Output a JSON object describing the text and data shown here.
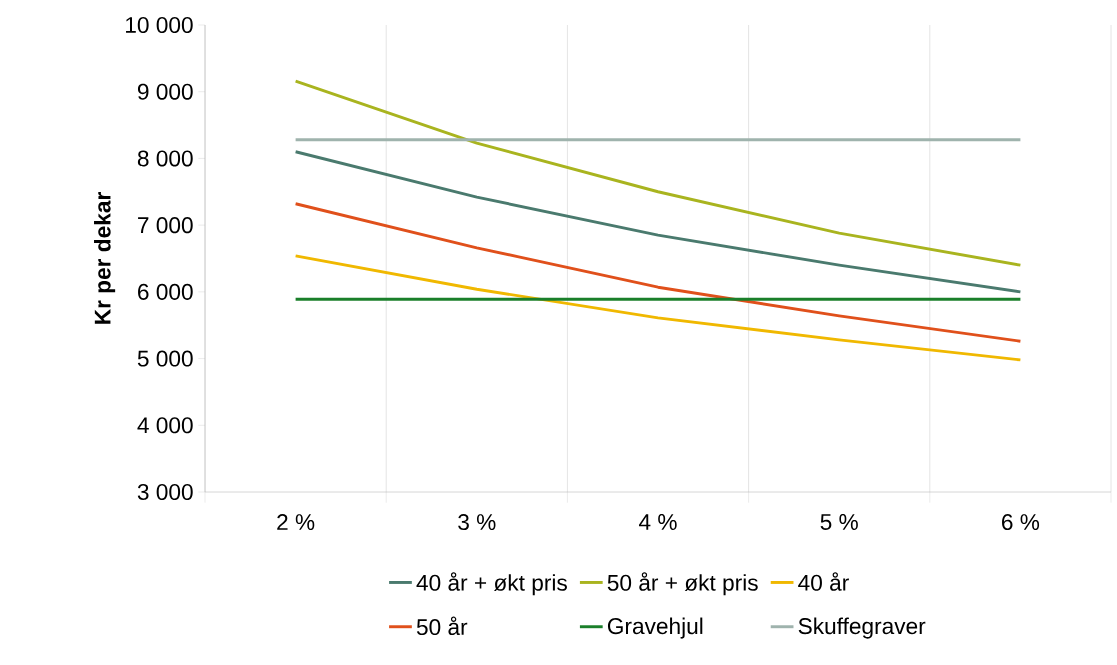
{
  "chart_data": {
    "type": "line",
    "ylabel": "Kr per dekar",
    "categories": [
      "2 %",
      "3 %",
      "4 %",
      "5 %",
      "6 %"
    ],
    "ylim": [
      3000,
      10000
    ],
    "yticks": [
      {
        "value": 3000,
        "label": "3 000"
      },
      {
        "value": 4000,
        "label": "4 000"
      },
      {
        "value": 5000,
        "label": "5 000"
      },
      {
        "value": 6000,
        "label": "6 000"
      },
      {
        "value": 7000,
        "label": "7 000"
      },
      {
        "value": 8000,
        "label": "8 000"
      },
      {
        "value": 9000,
        "label": "9 000"
      },
      {
        "value": 10000,
        "label": "10 000"
      }
    ],
    "grid": "x",
    "legend": "bottom",
    "marker": "none",
    "line_style": "solid",
    "series": [
      {
        "name": "40 år + økt pris",
        "color": "#4a7a6e",
        "values": [
          8100,
          7420,
          6850,
          6400,
          6000
        ]
      },
      {
        "name": "50 år + økt pris",
        "color": "#a9b41f",
        "values": [
          9160,
          8230,
          7500,
          6880,
          6400
        ]
      },
      {
        "name": "40 år",
        "color": "#f0b800",
        "values": [
          6540,
          6040,
          5610,
          5280,
          4980
        ]
      },
      {
        "name": "50 år",
        "color": "#e0501b",
        "values": [
          7320,
          6660,
          6070,
          5640,
          5260
        ]
      },
      {
        "name": "Gravehjul",
        "color": "#1a7f2a",
        "values": [
          5890,
          5890,
          5890,
          5890,
          5890
        ]
      },
      {
        "name": "Skuffegraver",
        "color": "#9fb3ad",
        "values": [
          8280,
          8280,
          8280,
          8280,
          8280
        ]
      }
    ]
  }
}
